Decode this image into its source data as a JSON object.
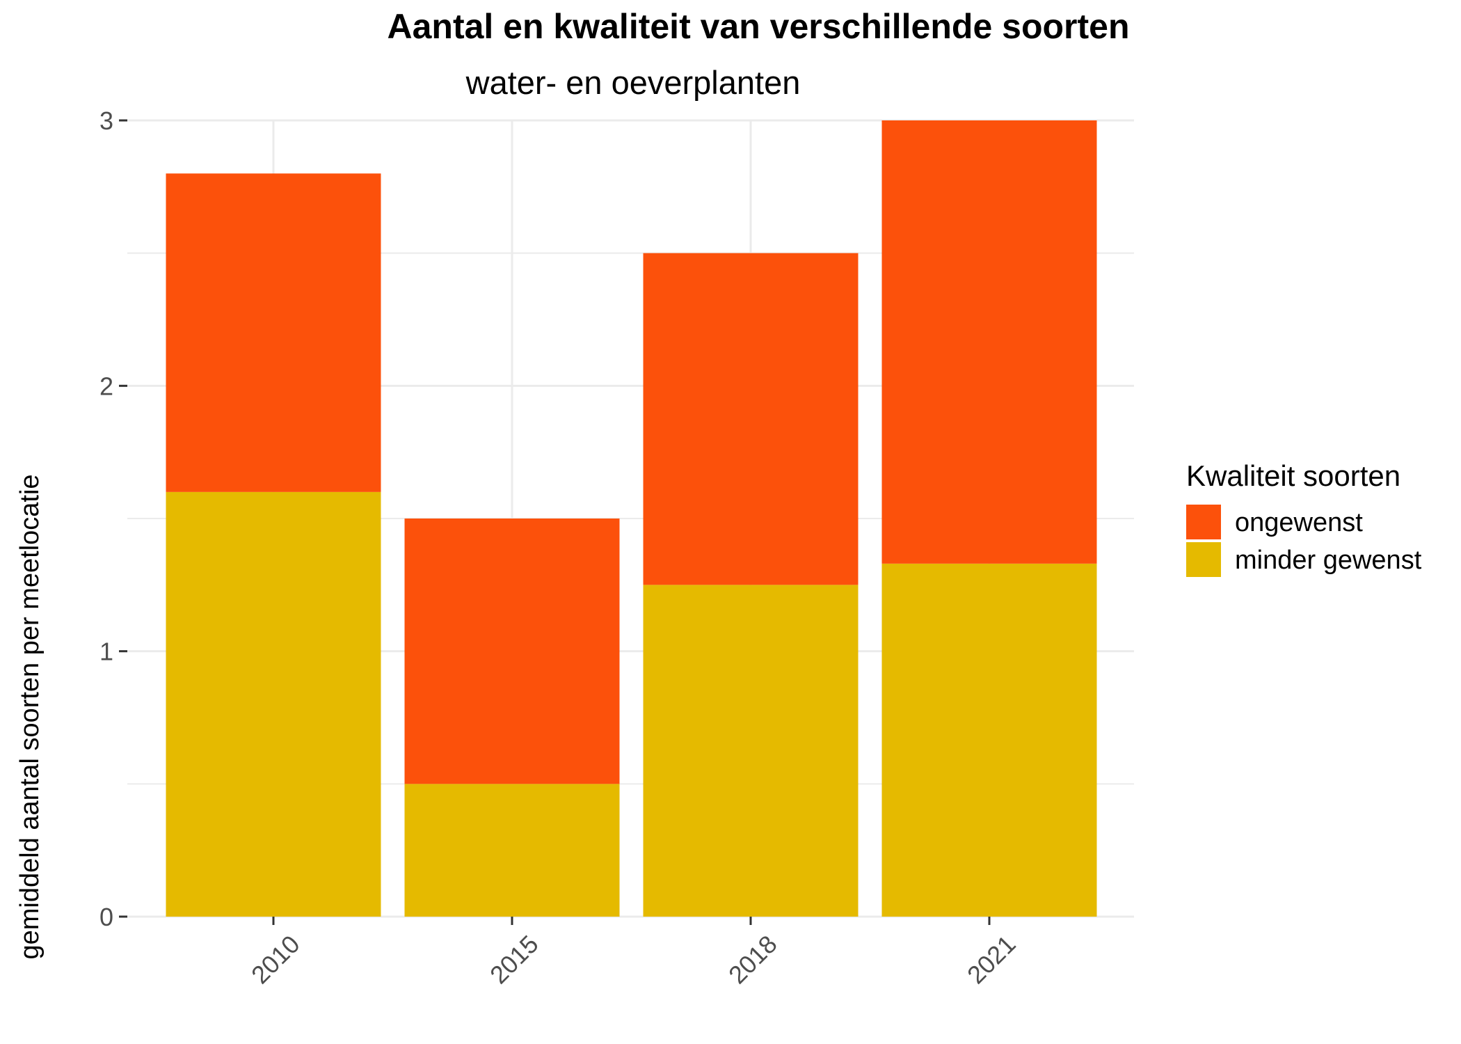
{
  "chart_data": {
    "type": "bar",
    "stacked": true,
    "title": "Aantal en kwaliteit van verschillende soorten",
    "subtitle": "water- en oeverplanten",
    "xlabel": "",
    "ylabel": "gemiddeld aantal soorten per meetlocatie",
    "categories": [
      "2010",
      "2015",
      "2018",
      "2021"
    ],
    "series": [
      {
        "name": "minder gewenst",
        "color": "#E5BA00",
        "values": [
          1.6,
          0.5,
          1.25,
          1.33
        ]
      },
      {
        "name": "ongewenst",
        "color": "#FC510B",
        "values": [
          1.2,
          1.0,
          1.25,
          1.67
        ]
      }
    ],
    "ylim": [
      0,
      3
    ],
    "yticks": [
      "0",
      "1",
      "2",
      "3"
    ],
    "grid": true,
    "legend": {
      "title": "Kwaliteit soorten",
      "position": "right",
      "entries": [
        {
          "label": "ongewenst",
          "color": "#FC510B"
        },
        {
          "label": "minder gewenst",
          "color": "#E5BA00"
        }
      ]
    }
  }
}
